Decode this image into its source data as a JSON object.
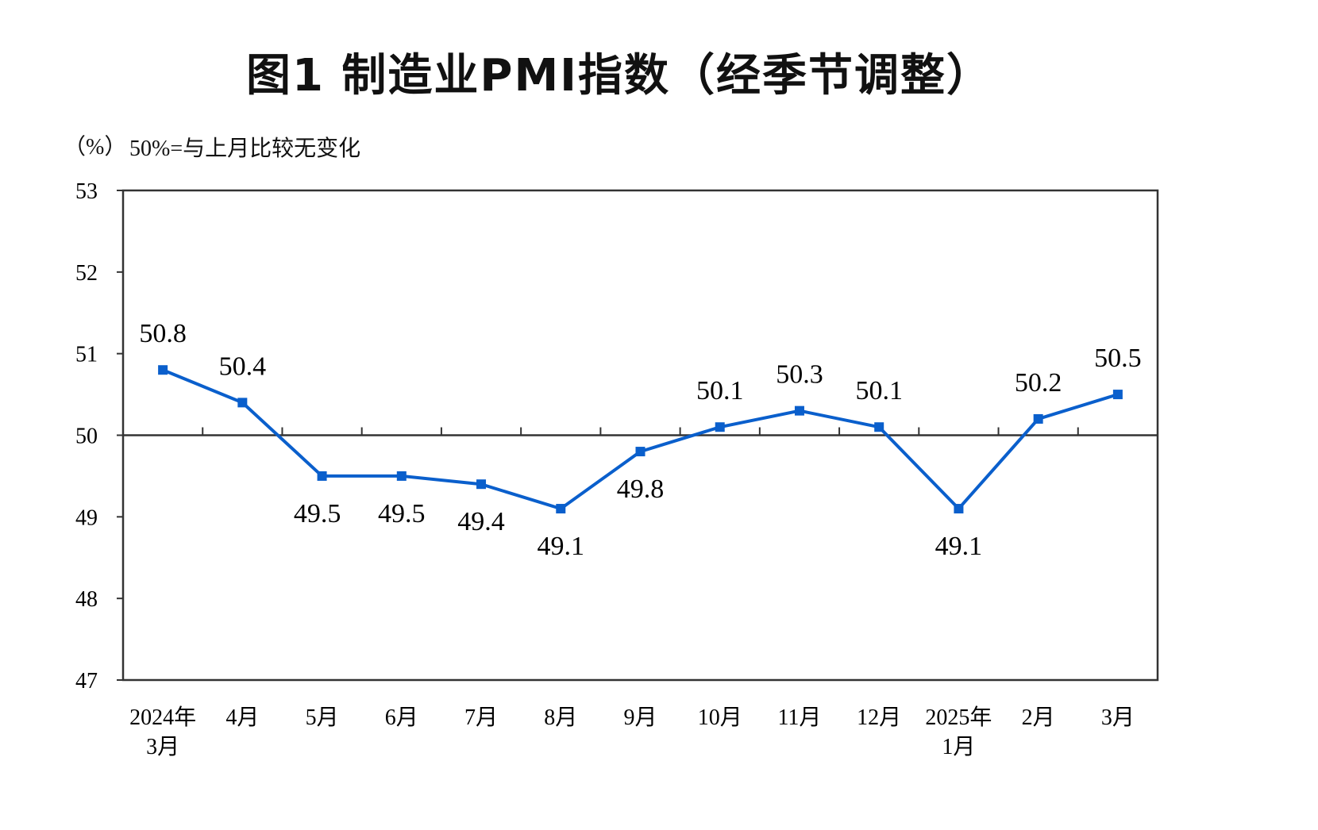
{
  "chart_data": {
    "type": "line",
    "title": "图1  制造业PMI指数（经季节调整）",
    "ylabel": "（%）",
    "annotation": "50%=与上月比较无变化",
    "categories": [
      "2024年\n3月",
      "4月",
      "5月",
      "6月",
      "7月",
      "8月",
      "9月",
      "10月",
      "11月",
      "12月",
      "2025年\n1月",
      "2月",
      "3月"
    ],
    "series": [
      {
        "values": [
          50.8,
          50.4,
          49.5,
          49.5,
          49.4,
          49.1,
          49.8,
          50.1,
          50.3,
          50.1,
          49.1,
          50.2,
          50.5
        ],
        "color": "#0a5fcc"
      }
    ],
    "ylim": [
      47,
      53
    ],
    "yticks": [
      47,
      48,
      49,
      50,
      51,
      52,
      53
    ],
    "reference_line": 50,
    "grid": false,
    "data_labels": true
  }
}
